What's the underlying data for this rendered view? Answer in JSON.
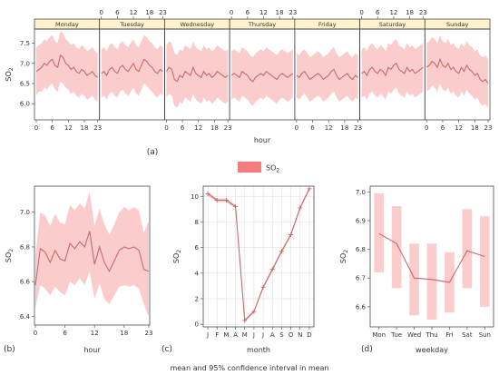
{
  "figure": {
    "legend_label": "SO",
    "legend_sub": "2",
    "footer": "mean and 95% confidence interval in mean",
    "colors": {
      "line": "#c76b6b",
      "band": "#f5a3a3",
      "band_opacity": "0.55",
      "strip": "#fff2cc",
      "legend": "#f47c7c"
    }
  },
  "chart_data": [
    {
      "id": "a",
      "type": "area",
      "panel_label": "(a)",
      "title": "",
      "xlabel": "hour",
      "ylabel": "SO",
      "ylabel_sub": "2",
      "ylim": [
        5.6,
        7.85
      ],
      "yticks": [
        "6.0",
        "6.5",
        "7.0",
        "7.5"
      ],
      "ytick_values": [
        6.0,
        6.5,
        7.0,
        7.5
      ],
      "xticks": [
        "0",
        "6",
        "12",
        "18",
        "23"
      ],
      "xtick_values": [
        0,
        6,
        12,
        18,
        23
      ],
      "facets": [
        {
          "name": "Monday",
          "mean": [
            6.8,
            6.85,
            6.9,
            7.0,
            6.95,
            7.05,
            7.1,
            6.95,
            6.9,
            7.2,
            7.15,
            7.0,
            6.95,
            6.85,
            6.9,
            6.8,
            6.75,
            6.85,
            6.8,
            6.7,
            6.75,
            6.8,
            6.7,
            6.65
          ],
          "lower": [
            6.2,
            6.3,
            6.3,
            6.4,
            6.35,
            6.45,
            6.5,
            6.35,
            6.3,
            6.55,
            6.5,
            6.4,
            6.35,
            6.25,
            6.3,
            6.2,
            6.15,
            6.25,
            6.2,
            6.1,
            6.15,
            6.2,
            6.1,
            6.05
          ],
          "upper": [
            7.4,
            7.45,
            7.5,
            7.6,
            7.55,
            7.65,
            7.7,
            7.55,
            7.5,
            7.8,
            7.75,
            7.6,
            7.55,
            7.45,
            7.5,
            7.4,
            7.35,
            7.45,
            7.4,
            7.3,
            7.35,
            7.4,
            7.3,
            7.25
          ]
        },
        {
          "name": "Tuesday",
          "mean": [
            6.75,
            6.8,
            6.7,
            6.85,
            6.9,
            6.8,
            6.75,
            6.9,
            6.95,
            6.85,
            6.8,
            6.9,
            7.0,
            6.85,
            6.8,
            6.95,
            7.1,
            7.05,
            6.95,
            6.9,
            6.8,
            6.75,
            6.85,
            6.8
          ],
          "lower": [
            6.15,
            6.2,
            6.1,
            6.25,
            6.3,
            6.2,
            6.15,
            6.3,
            6.35,
            6.25,
            6.2,
            6.3,
            6.4,
            6.25,
            6.2,
            6.35,
            6.5,
            6.45,
            6.35,
            6.3,
            6.2,
            6.15,
            6.25,
            6.2
          ],
          "upper": [
            7.35,
            7.4,
            7.3,
            7.45,
            7.5,
            7.4,
            7.35,
            7.5,
            7.55,
            7.45,
            7.4,
            7.5,
            7.6,
            7.45,
            7.4,
            7.55,
            7.7,
            7.65,
            7.55,
            7.5,
            7.4,
            7.35,
            7.45,
            7.4
          ]
        },
        {
          "name": "Wednesday",
          "mean": [
            6.8,
            6.9,
            6.85,
            6.6,
            6.55,
            6.7,
            6.65,
            6.8,
            6.75,
            6.7,
            6.9,
            6.75,
            6.7,
            6.65,
            6.8,
            6.7,
            6.75,
            6.65,
            6.7,
            6.8,
            6.75,
            6.7,
            6.65,
            6.7
          ],
          "lower": [
            6.15,
            6.25,
            6.2,
            5.95,
            5.9,
            6.05,
            6.0,
            6.15,
            6.1,
            6.05,
            6.25,
            6.1,
            6.05,
            6.0,
            6.15,
            6.05,
            6.1,
            6.0,
            6.05,
            6.15,
            6.1,
            6.05,
            6.0,
            6.05
          ],
          "upper": [
            7.45,
            7.55,
            7.5,
            7.25,
            7.2,
            7.35,
            7.3,
            7.45,
            7.4,
            7.35,
            7.55,
            7.4,
            7.35,
            7.3,
            7.45,
            7.35,
            7.4,
            7.3,
            7.35,
            7.45,
            7.4,
            7.35,
            7.3,
            7.35
          ]
        },
        {
          "name": "Thursday",
          "mean": [
            6.7,
            6.75,
            6.7,
            6.65,
            6.8,
            6.75,
            6.7,
            6.6,
            6.55,
            6.65,
            6.7,
            6.75,
            6.7,
            6.8,
            6.75,
            6.7,
            6.65,
            6.6,
            6.7,
            6.75,
            6.7,
            6.65,
            6.7,
            6.75
          ],
          "lower": [
            6.1,
            6.15,
            6.1,
            6.05,
            6.2,
            6.15,
            6.1,
            6.0,
            5.95,
            6.05,
            6.1,
            6.15,
            6.1,
            6.2,
            6.15,
            6.1,
            6.05,
            6.0,
            6.1,
            6.15,
            6.1,
            6.05,
            6.1,
            6.15
          ],
          "upper": [
            7.3,
            7.35,
            7.3,
            7.25,
            7.4,
            7.35,
            7.3,
            7.2,
            7.15,
            7.25,
            7.3,
            7.35,
            7.3,
            7.4,
            7.35,
            7.3,
            7.25,
            7.2,
            7.3,
            7.35,
            7.3,
            7.25,
            7.3,
            7.35
          ]
        },
        {
          "name": "Friday",
          "mean": [
            6.7,
            6.65,
            6.75,
            6.8,
            6.7,
            6.6,
            6.65,
            6.7,
            6.75,
            6.7,
            6.6,
            6.65,
            6.7,
            6.8,
            6.85,
            6.7,
            6.6,
            6.65,
            6.7,
            6.75,
            6.65,
            6.6,
            6.7,
            6.65
          ],
          "lower": [
            6.15,
            6.1,
            6.2,
            6.25,
            6.15,
            6.05,
            6.1,
            6.15,
            6.2,
            6.15,
            6.05,
            6.1,
            6.15,
            6.25,
            6.3,
            6.15,
            6.05,
            6.1,
            6.15,
            6.2,
            6.1,
            6.05,
            6.15,
            6.1
          ],
          "upper": [
            7.25,
            7.2,
            7.3,
            7.35,
            7.25,
            7.15,
            7.2,
            7.25,
            7.3,
            7.25,
            7.15,
            7.2,
            7.25,
            7.35,
            7.4,
            7.25,
            7.15,
            7.2,
            7.25,
            7.3,
            7.2,
            7.15,
            7.25,
            7.2
          ]
        },
        {
          "name": "Saturday",
          "mean": [
            6.75,
            6.8,
            6.7,
            6.85,
            6.9,
            6.8,
            6.75,
            6.85,
            6.8,
            6.7,
            6.9,
            6.85,
            6.95,
            7.0,
            6.85,
            6.8,
            6.75,
            6.9,
            6.8,
            6.85,
            6.75,
            6.8,
            6.85,
            6.9
          ],
          "lower": [
            6.15,
            6.2,
            6.1,
            6.25,
            6.3,
            6.2,
            6.15,
            6.25,
            6.2,
            6.1,
            6.3,
            6.25,
            6.35,
            6.4,
            6.25,
            6.2,
            6.15,
            6.3,
            6.2,
            6.25,
            6.15,
            6.2,
            6.25,
            6.3
          ],
          "upper": [
            7.35,
            7.4,
            7.3,
            7.45,
            7.5,
            7.4,
            7.35,
            7.45,
            7.4,
            7.3,
            7.5,
            7.45,
            7.55,
            7.6,
            7.45,
            7.4,
            7.35,
            7.5,
            7.4,
            7.45,
            7.35,
            7.4,
            7.45,
            7.5
          ]
        },
        {
          "name": "Sunday",
          "mean": [
            6.9,
            6.95,
            7.05,
            7.0,
            6.9,
            7.1,
            6.95,
            6.9,
            7.0,
            6.85,
            6.9,
            6.8,
            6.75,
            6.9,
            6.8,
            6.95,
            6.85,
            6.8,
            6.7,
            6.75,
            6.6,
            6.55,
            6.6,
            6.5
          ],
          "lower": [
            6.3,
            6.35,
            6.45,
            6.4,
            6.3,
            6.5,
            6.35,
            6.3,
            6.4,
            6.25,
            6.3,
            6.2,
            6.15,
            6.3,
            6.2,
            6.35,
            6.25,
            6.2,
            6.1,
            6.15,
            6.0,
            5.95,
            6.0,
            5.9
          ],
          "upper": [
            7.5,
            7.55,
            7.65,
            7.6,
            7.5,
            7.7,
            7.55,
            7.5,
            7.6,
            7.45,
            7.5,
            7.4,
            7.35,
            7.5,
            7.4,
            7.55,
            7.45,
            7.4,
            7.3,
            7.35,
            7.2,
            7.15,
            7.2,
            7.1
          ]
        }
      ]
    },
    {
      "id": "b",
      "type": "area",
      "panel_label": "(b)",
      "title": "",
      "xlabel": "hour",
      "ylabel": "SO",
      "ylabel_sub": "2",
      "ylim": [
        6.35,
        7.15
      ],
      "yticks": [
        "6.4",
        "6.6",
        "6.8",
        "7.0"
      ],
      "ytick_values": [
        6.4,
        6.6,
        6.8,
        7.0
      ],
      "xticks": [
        "0",
        "6",
        "12",
        "18",
        "23"
      ],
      "xtick_values": [
        0,
        6,
        12,
        18,
        23
      ],
      "x": [
        0,
        1,
        2,
        3,
        4,
        5,
        6,
        7,
        8,
        9,
        10,
        11,
        12,
        13,
        14,
        15,
        16,
        17,
        18,
        19,
        20,
        21,
        22,
        23
      ],
      "mean": [
        6.58,
        6.79,
        6.77,
        6.71,
        6.78,
        6.73,
        6.72,
        6.82,
        6.79,
        6.83,
        6.8,
        6.89,
        6.7,
        6.8,
        6.71,
        6.66,
        6.72,
        6.78,
        6.8,
        6.79,
        6.8,
        6.78,
        6.67,
        6.66
      ],
      "lower": [
        6.45,
        6.58,
        6.56,
        6.52,
        6.57,
        6.54,
        6.52,
        6.6,
        6.58,
        6.62,
        6.58,
        6.66,
        6.5,
        6.59,
        6.5,
        6.47,
        6.52,
        6.57,
        6.58,
        6.57,
        6.58,
        6.56,
        6.47,
        6.4
      ],
      "upper": [
        6.75,
        7.0,
        6.98,
        6.92,
        6.99,
        6.94,
        6.93,
        7.04,
        7.01,
        7.05,
        7.02,
        7.12,
        6.92,
        7.02,
        6.93,
        6.87,
        6.93,
        7.0,
        7.03,
        7.01,
        7.03,
        7.01,
        6.88,
        6.95
      ]
    },
    {
      "id": "c",
      "type": "line",
      "panel_label": "(c)",
      "title": "",
      "xlabel": "month",
      "ylabel": "SO",
      "ylabel_sub": "2",
      "ylim": [
        -0.2,
        10.8
      ],
      "yticks": [
        "0",
        "2",
        "4",
        "6",
        "8",
        "10"
      ],
      "ytick_values": [
        0,
        2,
        4,
        6,
        8,
        10
      ],
      "categories": [
        "J",
        "F",
        "M",
        "A",
        "M",
        "J",
        "J",
        "A",
        "S",
        "O",
        "N",
        "D"
      ],
      "mean": [
        10.2,
        9.7,
        9.7,
        9.2,
        0.3,
        1.0,
        2.9,
        4.3,
        5.7,
        7.0,
        9.1,
        10.6
      ],
      "lower": [
        10.05,
        9.55,
        9.55,
        9.05,
        0.2,
        0.9,
        2.75,
        4.15,
        5.55,
        6.85,
        8.95,
        10.45
      ],
      "upper": [
        10.35,
        9.85,
        9.85,
        9.35,
        0.4,
        1.1,
        3.05,
        4.45,
        5.85,
        7.15,
        9.25,
        10.75
      ]
    },
    {
      "id": "d",
      "type": "line",
      "panel_label": "(d)",
      "title": "",
      "xlabel": "weekday",
      "ylabel": "SO",
      "ylabel_sub": "2",
      "ylim": [
        6.53,
        7.02
      ],
      "yticks": [
        "6.6",
        "6.7",
        "6.8",
        "6.9",
        "7.0"
      ],
      "ytick_values": [
        6.6,
        6.7,
        6.8,
        6.9,
        7.0
      ],
      "categories": [
        "Mon",
        "Tue",
        "Wed",
        "Thu",
        "Fri",
        "Sat",
        "Sun"
      ],
      "mean": [
        6.855,
        6.82,
        6.7,
        6.695,
        6.685,
        6.795,
        6.775
      ],
      "lower": [
        6.72,
        6.665,
        6.57,
        6.555,
        6.58,
        6.665,
        6.6
      ],
      "upper": [
        6.995,
        6.95,
        6.82,
        6.82,
        6.79,
        6.94,
        6.915
      ]
    }
  ]
}
